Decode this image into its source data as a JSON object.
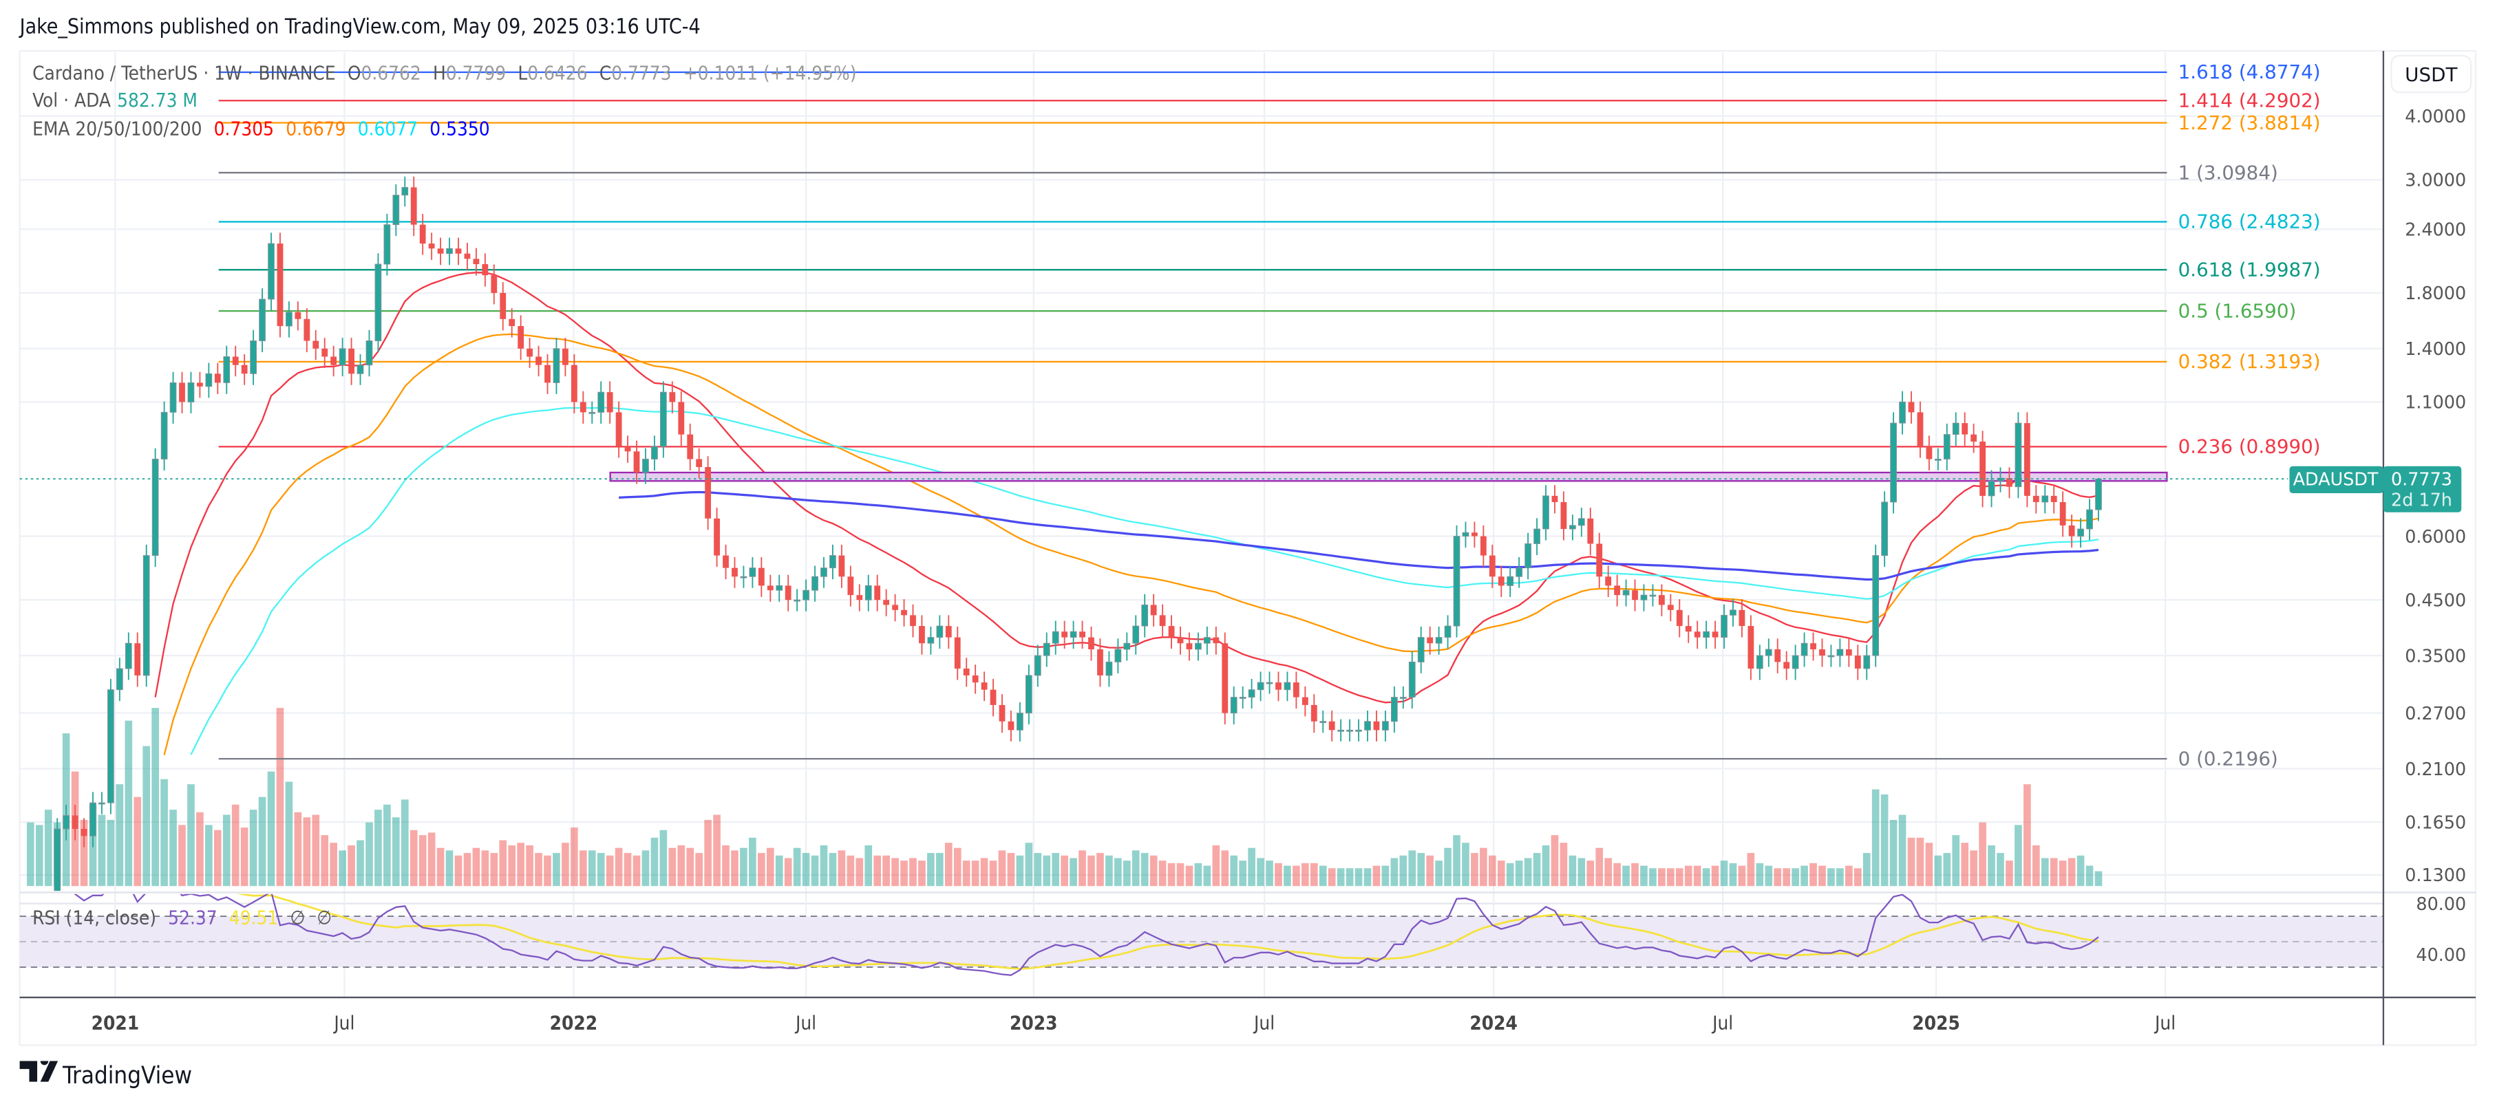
{
  "publish_line": "Jake_Simmons published on TradingView.com, May 09, 2025 03:16 UTC-4",
  "legend": {
    "symbol": "Cardano / TetherUS · 1W · BINANCE",
    "o_label": "O",
    "o": "0.6762",
    "h_label": "H",
    "h": "0.7799",
    "l_label": "L",
    "l": "0.6426",
    "c_label": "C",
    "c": "0.7773",
    "change": "+0.1011 (+14.95%)",
    "vol_label": "Vol · ADA",
    "vol": "582.73 M",
    "ema_label": "EMA 20/50/100/200",
    "ema20": "0.7305",
    "ema50": "0.6679",
    "ema100": "0.6077",
    "ema200": "0.5350"
  },
  "rsi_legend": {
    "label": "RSI (14, close)",
    "rsi": "52.37",
    "ma": "49.51",
    "na1": "∅",
    "na2": "∅"
  },
  "currency_button": "USDT",
  "price_label": {
    "symbol": "ADAUSDT",
    "price": "0.7773",
    "countdown": "2d 17h"
  },
  "footer_logo": "TradingView",
  "colors": {
    "up": "#26a69a",
    "down": "#ef5350",
    "ema20": "#f23645",
    "ema50": "#ff9800",
    "ema100": "#4df3f5",
    "ema200": "#4a4af0",
    "rsi": "#7e57c2",
    "rsi_ma": "#f5e23b",
    "zone_fill": "#e6cdef",
    "zone_border": "#9c27b0"
  },
  "chart_data": {
    "type": "candlestick",
    "scale": "log",
    "interval": "1W",
    "y_ticks": [
      "4.0000",
      "3.0000",
      "2.4000",
      "1.8000",
      "1.4000",
      "1.1000",
      "0.6000",
      "0.4500",
      "0.3500",
      "0.2700",
      "0.2100",
      "0.1650",
      "0.1300"
    ],
    "x_ticks": [
      "2021",
      "Jul",
      "2022",
      "Jul",
      "2023",
      "Jul",
      "2024",
      "Jul",
      "2025",
      "Jul"
    ],
    "rsi_ticks": [
      "80.00",
      "40.00"
    ],
    "first_open": 0.098,
    "closes": [
      0.1,
      0.105,
      0.11,
      0.16,
      0.17,
      0.16,
      0.155,
      0.18,
      0.18,
      0.3,
      0.33,
      0.37,
      0.32,
      0.55,
      0.85,
      1.05,
      1.2,
      1.1,
      1.2,
      1.18,
      1.25,
      1.2,
      1.35,
      1.3,
      1.25,
      1.45,
      1.75,
      2.25,
      1.55,
      1.65,
      1.6,
      1.45,
      1.4,
      1.35,
      1.3,
      1.4,
      1.25,
      1.3,
      1.45,
      2.05,
      2.45,
      2.8,
      2.9,
      2.45,
      2.25,
      2.2,
      2.15,
      2.2,
      2.15,
      2.1,
      2.05,
      1.95,
      1.8,
      1.6,
      1.55,
      1.4,
      1.35,
      1.3,
      1.2,
      1.4,
      1.3,
      1.1,
      1.05,
      1.05,
      1.15,
      1.05,
      0.9,
      0.88,
      0.8,
      0.85,
      0.9,
      1.15,
      1.1,
      0.95,
      0.85,
      0.82,
      0.65,
      0.55,
      0.52,
      0.5,
      0.5,
      0.52,
      0.48,
      0.47,
      0.48,
      0.45,
      0.45,
      0.47,
      0.5,
      0.52,
      0.55,
      0.5,
      0.46,
      0.45,
      0.48,
      0.45,
      0.44,
      0.43,
      0.42,
      0.4,
      0.37,
      0.38,
      0.4,
      0.38,
      0.33,
      0.32,
      0.31,
      0.3,
      0.28,
      0.26,
      0.25,
      0.27,
      0.32,
      0.35,
      0.37,
      0.39,
      0.38,
      0.39,
      0.38,
      0.36,
      0.32,
      0.34,
      0.36,
      0.37,
      0.4,
      0.44,
      0.42,
      0.4,
      0.38,
      0.37,
      0.36,
      0.37,
      0.38,
      0.37,
      0.27,
      0.29,
      0.29,
      0.3,
      0.31,
      0.31,
      0.3,
      0.31,
      0.29,
      0.28,
      0.26,
      0.26,
      0.25,
      0.25,
      0.25,
      0.25,
      0.26,
      0.25,
      0.26,
      0.29,
      0.29,
      0.34,
      0.38,
      0.37,
      0.38,
      0.4,
      0.6,
      0.61,
      0.6,
      0.55,
      0.5,
      0.48,
      0.5,
      0.52,
      0.58,
      0.62,
      0.72,
      0.7,
      0.62,
      0.63,
      0.65,
      0.58,
      0.5,
      0.48,
      0.46,
      0.47,
      0.45,
      0.46,
      0.46,
      0.44,
      0.43,
      0.4,
      0.39,
      0.38,
      0.39,
      0.38,
      0.42,
      0.43,
      0.4,
      0.33,
      0.35,
      0.36,
      0.34,
      0.33,
      0.35,
      0.37,
      0.36,
      0.35,
      0.35,
      0.36,
      0.35,
      0.33,
      0.35,
      0.55,
      0.7,
      1.0,
      1.1,
      1.05,
      0.9,
      0.85,
      0.85,
      0.95,
      1.0,
      0.95,
      0.92,
      0.72,
      0.77,
      0.78,
      0.75,
      1.0,
      0.72,
      0.7,
      0.72,
      0.7,
      0.63,
      0.6,
      0.62,
      0.6762,
      0.7773
    ],
    "last_high": 0.7799,
    "last_low": 0.6426,
    "volumes_millions": [
      2500,
      2400,
      3000,
      2500,
      6000,
      4500,
      2600,
      3200,
      2800,
      2600,
      4000,
      6500,
      3500,
      5500,
      7000,
      4200,
      3000,
      2400,
      4000,
      2900,
      2400,
      2200,
      2800,
      3200,
      2300,
      3000,
      3500,
      4500,
      7000,
      4100,
      2900,
      2700,
      2800,
      2000,
      1700,
      1400,
      1600,
      1800,
      2500,
      3000,
      3200,
      2700,
      3400,
      2200,
      2000,
      2100,
      1500,
      1400,
      1200,
      1300,
      1500,
      1400,
      1300,
      1800,
      1600,
      1700,
      1600,
      1300,
      1200,
      1300,
      1700,
      2300,
      1400,
      1400,
      1300,
      1200,
      1500,
      1300,
      1200,
      1400,
      1900,
      2200,
      1500,
      1600,
      1500,
      1300,
      2600,
      2800,
      1600,
      1400,
      1500,
      1900,
      1300,
      1500,
      1200,
      1100,
      1500,
      1300,
      1200,
      1600,
      1300,
      1400,
      1200,
      1100,
      1600,
      1200,
      1200,
      1100,
      1000,
      1100,
      1000,
      1300,
      1300,
      1700,
      1500,
      1000,
      1000,
      1100,
      1000,
      1400,
      1300,
      1200,
      1700,
      1300,
      1200,
      1300,
      1200,
      1100,
      1400,
      1200,
      1300,
      1200,
      1100,
      1000,
      1400,
      1300,
      1200,
      1000,
      900,
      900,
      800,
      900,
      800,
      1600,
      1400,
      1200,
      1000,
      1500,
      1100,
      1000,
      900,
      800,
      800,
      900,
      900,
      800,
      700,
      700,
      700,
      700,
      700,
      800,
      800,
      1100,
      1200,
      1400,
      1300,
      1200,
      1000,
      1500,
      2000,
      1700,
      1300,
      1500,
      1200,
      1000,
      900,
      1000,
      1100,
      1300,
      1600,
      2000,
      1700,
      1200,
      1100,
      1000,
      1500,
      1100,
      900,
      800,
      900,
      800,
      700,
      700,
      700,
      700,
      800,
      800,
      700,
      800,
      1000,
      900,
      800,
      1300,
      900,
      800,
      700,
      700,
      700,
      800,
      900,
      800,
      700,
      700,
      800,
      700,
      1300,
      3800,
      3600,
      2600,
      2800,
      1900,
      1900,
      1700,
      1200,
      1300,
      2000,
      1700,
      1400,
      2500,
      1600,
      1300,
      1000,
      2400,
      4000,
      1600,
      1100,
      1100,
      1000,
      1100,
      1200,
      800,
      582.73
    ],
    "fib_levels": [
      {
        "label": "1.618 (4.8774)",
        "price": 4.8774,
        "color": "#2962ff"
      },
      {
        "label": "1.414 (4.2902)",
        "price": 4.2902,
        "color": "#f23645"
      },
      {
        "label": "1.272 (3.8814)",
        "price": 3.8814,
        "color": "#ff9800"
      },
      {
        "label": "1 (3.0984)",
        "price": 3.0984,
        "color": "#787b86"
      },
      {
        "label": "0.786 (2.4823)",
        "price": 2.4823,
        "color": "#00bcd4"
      },
      {
        "label": "0.618 (1.9987)",
        "price": 1.9987,
        "color": "#089981"
      },
      {
        "label": "0.5 (1.6590)",
        "price": 1.659,
        "color": "#4caf50"
      },
      {
        "label": "0.382 (1.3193)",
        "price": 1.3193,
        "color": "#ff9800"
      },
      {
        "label": "0.236 (0.8990)",
        "price": 0.899,
        "color": "#f23645"
      },
      {
        "label": "0 (0.2196)",
        "price": 0.2196,
        "color": "#787b86"
      }
    ],
    "zone": {
      "top": 0.8,
      "bottom": 0.77
    }
  }
}
